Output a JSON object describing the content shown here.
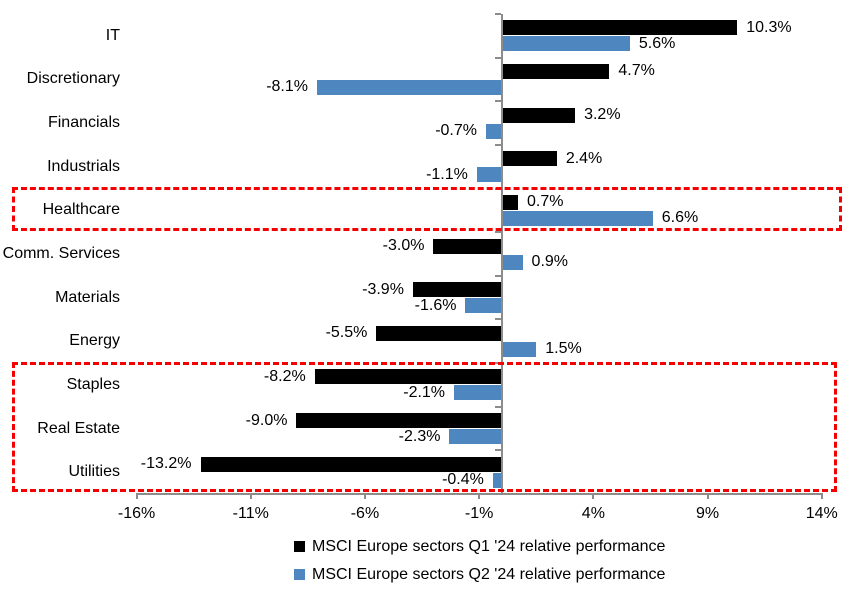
{
  "chart_data": {
    "type": "bar",
    "orientation": "horizontal",
    "title": "",
    "xlabel": "",
    "ylabel": "",
    "grid": false,
    "legend_position": "bottom-center",
    "xlim": [
      -16,
      14
    ],
    "categories": [
      "IT",
      "Discretionary",
      "Financials",
      "Industrials",
      "Healthcare",
      "Comm. Services",
      "Materials",
      "Energy",
      "Staples",
      "Real Estate",
      "Utilities"
    ],
    "series": [
      {
        "name": "MSCI Europe sectors Q1 '24 relative performance",
        "color": "#000000",
        "values": [
          10.3,
          4.7,
          3.2,
          2.4,
          0.7,
          -3.0,
          -3.9,
          -5.5,
          -8.2,
          -9.0,
          -13.2
        ],
        "labels": [
          "10.3%",
          "4.7%",
          "3.2%",
          "2.4%",
          "0.7%",
          "-3.0%",
          "-3.9%",
          "-5.5%",
          "-8.2%",
          "-9.0%",
          "-13.2%"
        ]
      },
      {
        "name": "MSCI Europe sectors Q2 '24 relative performance",
        "color": "#4E86C0",
        "values": [
          5.6,
          -8.1,
          -0.7,
          -1.1,
          6.6,
          0.9,
          -1.6,
          1.5,
          -2.1,
          -2.3,
          -0.4
        ],
        "labels": [
          "5.6%",
          "-8.1%",
          "-0.7%",
          "-1.1%",
          "6.6%",
          "0.9%",
          "-1.6%",
          "1.5%",
          "-2.1%",
          "-2.3%",
          "-0.4%"
        ]
      }
    ],
    "x_ticks": [
      {
        "value": -16,
        "label": "-16%"
      },
      {
        "value": -11,
        "label": "-11%"
      },
      {
        "value": -6,
        "label": "-6%"
      },
      {
        "value": -1,
        "label": "-1%"
      },
      {
        "value": 4,
        "label": "4%"
      },
      {
        "value": 9,
        "label": "9%"
      },
      {
        "value": 14,
        "label": "14%"
      }
    ],
    "highlights": [
      {
        "categories": [
          "Healthcare"
        ]
      },
      {
        "categories": [
          "Staples",
          "Real Estate",
          "Utilities"
        ]
      }
    ],
    "highlight_color": "#f50000",
    "axis_color": "#8C8C8C"
  },
  "legend": {
    "items": [
      {
        "label": "MSCI Europe sectors Q1 '24 relative performance",
        "color": "#000000"
      },
      {
        "label": "MSCI Europe sectors Q2 '24 relative performance",
        "color": "#4E86C0"
      }
    ]
  }
}
